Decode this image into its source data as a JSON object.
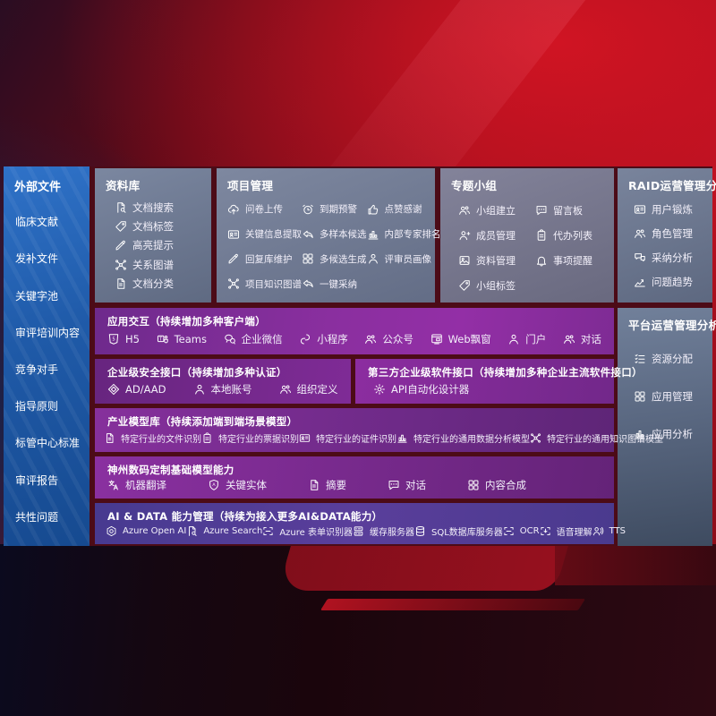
{
  "colors": {
    "accent_purple": "#8a2f9f",
    "accent_blue": "#1f5aa8",
    "panel_gray": "#75819a",
    "background_red": "#b01020",
    "aidata_indigo": "#4b3c94"
  },
  "sidebar": {
    "title": "外部文件",
    "items": [
      "临床文献",
      "发补文件",
      "关键字池",
      "审评培训内容",
      "竞争对手",
      "指导原则",
      "标管中心标准",
      "审评报告",
      "共性问题"
    ]
  },
  "library": {
    "title": "资料库",
    "items": [
      {
        "icon": "doc-search",
        "label": "文档搜索"
      },
      {
        "icon": "tag",
        "label": "文档标签"
      },
      {
        "icon": "highlight-pen",
        "label": "高亮提示"
      },
      {
        "icon": "knowledge-graph",
        "label": "关系图谱"
      },
      {
        "icon": "doc-category",
        "label": "文档分类"
      }
    ]
  },
  "project": {
    "title": "项目管理",
    "items": [
      {
        "icon": "cloud-upload",
        "label": "问卷上传"
      },
      {
        "icon": "alarm",
        "label": "到期预警"
      },
      {
        "icon": "thumbs-up",
        "label": "点赞感谢"
      },
      {
        "icon": "info-extract",
        "label": "关键信息提取"
      },
      {
        "icon": "reply-arrow",
        "label": "多样本候选"
      },
      {
        "icon": "ranking-chart",
        "label": "内部专家排名"
      },
      {
        "icon": "pen",
        "label": "回复库维护"
      },
      {
        "icon": "generate-grid",
        "label": "多候选生成"
      },
      {
        "icon": "reviewer-person",
        "label": "评审员画像"
      },
      {
        "icon": "knowledge-graph",
        "label": "项目知识图谱"
      },
      {
        "icon": "adopt-arrow",
        "label": "一键采纳"
      }
    ]
  },
  "group": {
    "title": "专题小组",
    "items": [
      {
        "icon": "people",
        "label": "小组建立"
      },
      {
        "icon": "bbs-board",
        "label": "留言板"
      },
      {
        "icon": "member-add",
        "label": "成员管理"
      },
      {
        "icon": "todo-clipboard",
        "label": "代办列表"
      },
      {
        "icon": "photo-archive",
        "label": "资料管理"
      },
      {
        "icon": "bell",
        "label": "事项提醒"
      },
      {
        "icon": "tag",
        "label": "小组标签"
      }
    ]
  },
  "raid": {
    "title": "RAID运营管理分析",
    "items": [
      {
        "icon": "id-card",
        "label": "用户锻炼"
      },
      {
        "icon": "people",
        "label": "角色管理"
      },
      {
        "icon": "qa-bubbles",
        "label": "采纳分析"
      },
      {
        "icon": "trend-chart",
        "label": "问题趋势"
      }
    ]
  },
  "platform": {
    "title": "平台运营管理分析",
    "items": [
      {
        "icon": "checklist",
        "label": "资源分配"
      },
      {
        "icon": "app-grid",
        "label": "应用管理"
      },
      {
        "icon": "analytics-chart",
        "label": "应用分析"
      }
    ]
  },
  "rows": {
    "interaction": {
      "title": "应用交互（持续增加多种客户端）",
      "items": [
        {
          "icon": "html5",
          "label": "H5"
        },
        {
          "icon": "teams",
          "label": "Teams"
        },
        {
          "icon": "wechat-work",
          "label": "企业微信"
        },
        {
          "icon": "mini-program",
          "label": "小程序"
        },
        {
          "icon": "official-account",
          "label": "公众号"
        },
        {
          "icon": "web-window",
          "label": "Web飘窗"
        },
        {
          "icon": "portal-person",
          "label": "门户"
        },
        {
          "icon": "dialog-people",
          "label": "对话"
        }
      ]
    },
    "security": {
      "title": "企业级安全接口（持续增加多种认证）",
      "items": [
        {
          "icon": "ad-diamond",
          "label": "AD/AAD"
        },
        {
          "icon": "person",
          "label": "本地账号"
        },
        {
          "icon": "org-people",
          "label": "组织定义"
        }
      ]
    },
    "thirdparty": {
      "title": "第三方企业级软件接口（持续增加多种企业主流软件接口）",
      "items": [
        {
          "icon": "api-gear",
          "label": "API自动化设计器"
        }
      ]
    },
    "industry": {
      "title": "产业模型库（持续添加端到端场景模型）",
      "items": [
        {
          "icon": "doc",
          "label": "特定行业的文件识别"
        },
        {
          "icon": "receipt",
          "label": "特定行业的票据识别"
        },
        {
          "icon": "id-card",
          "label": "特定行业的证件识别"
        },
        {
          "icon": "analytics-chart",
          "label": "特定行业的通用数据分析模型"
        },
        {
          "icon": "knowledge-graph",
          "label": "特定行业的通用知识图谱模型"
        }
      ]
    },
    "custom": {
      "title": "神州数码定制基础模型能力",
      "items": [
        {
          "icon": "translate",
          "label": "机器翻译"
        },
        {
          "icon": "shield-a",
          "label": "关键实体"
        },
        {
          "icon": "doc",
          "label": "摘要"
        },
        {
          "icon": "chat",
          "label": "对话"
        },
        {
          "icon": "generate-grid",
          "label": "内容合成"
        }
      ]
    },
    "aidata": {
      "title": "AI & DATA 能力管理（持续为接入更多AI&DATA能力）",
      "items": [
        {
          "icon": "openai",
          "label": "Azure Open AI"
        },
        {
          "icon": "doc-search",
          "label": "Azure Search"
        },
        {
          "icon": "form-recognizer",
          "label": "Azure 表单识别器"
        },
        {
          "icon": "cache-server",
          "label": "缓存服务器"
        },
        {
          "icon": "sql-database",
          "label": "SQL数据库服务器"
        },
        {
          "icon": "ocr",
          "label": "OCR"
        },
        {
          "icon": "voice-understand",
          "label": "语音理解"
        },
        {
          "icon": "tts",
          "label": "TTS"
        }
      ]
    }
  }
}
